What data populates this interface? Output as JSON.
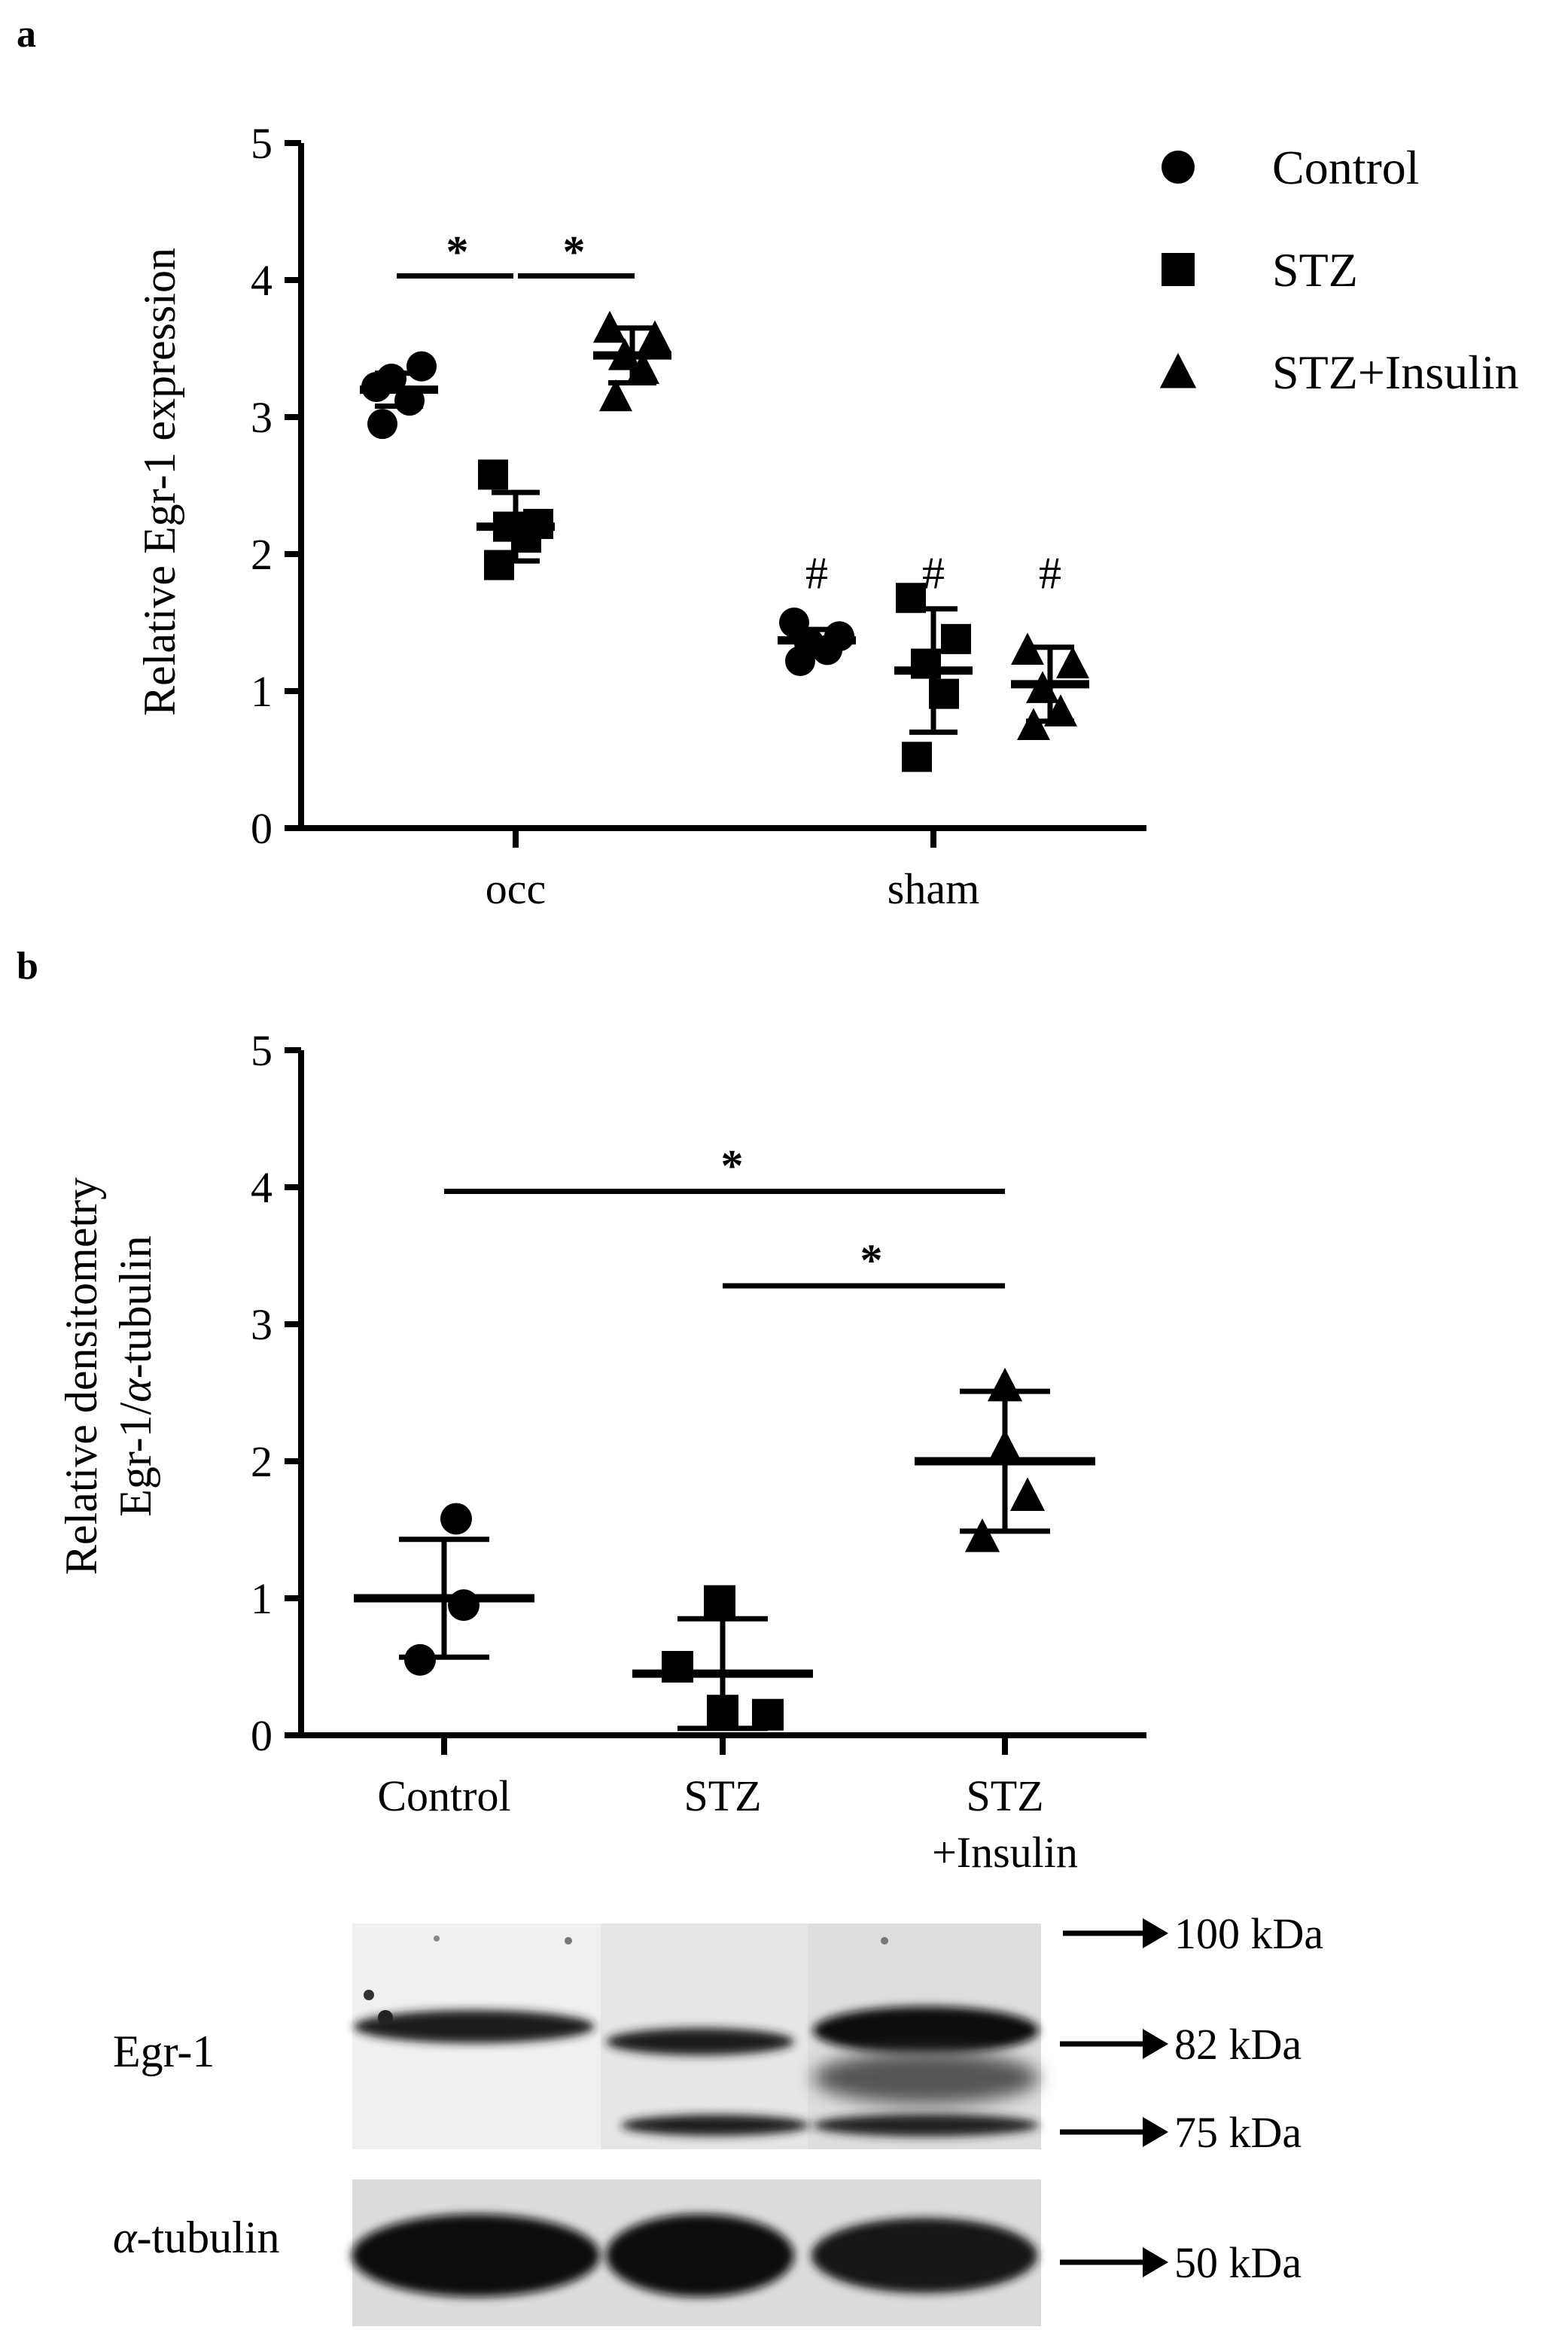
{
  "colors": {
    "ink": "#000000",
    "blot_bg": "#e9e9e9",
    "band": "#0d0d0d"
  },
  "chart_data": [
    {
      "panel": "a",
      "type": "scatter",
      "title": "",
      "ylabel": "Relative Egr-1 expression",
      "xlabel": "",
      "ylim": [
        0,
        5
      ],
      "yticks": [
        "0",
        "1",
        "2",
        "3",
        "4",
        "5"
      ],
      "categories": [
        "occ",
        "sham"
      ],
      "legend": {
        "placement": "top-right",
        "entries": [
          {
            "name": "Control",
            "marker": "circle"
          },
          {
            "name": "STZ",
            "marker": "square"
          },
          {
            "name": "STZ+Insulin",
            "marker": "triangle"
          }
        ]
      },
      "series": [
        {
          "name": "Control",
          "marker": "circle",
          "groups": [
            {
              "category": "occ",
              "mean": 3.2,
              "sd": 0.12,
              "points": [
                3.22,
                3.37,
                3.28,
                3.12,
                2.95
              ]
            },
            {
              "category": "sham",
              "mean": 1.37,
              "sd": 0.08,
              "points": [
                1.5,
                1.4,
                1.35,
                1.3,
                1.22
              ]
            }
          ]
        },
        {
          "name": "STZ",
          "marker": "square",
          "groups": [
            {
              "category": "occ",
              "mean": 2.2,
              "sd": 0.25,
              "points": [
                2.58,
                2.22,
                2.2,
                2.12,
                1.92
              ]
            },
            {
              "category": "sham",
              "mean": 1.15,
              "sd": 0.45,
              "points": [
                1.68,
                1.38,
                1.2,
                0.98,
                0.52
              ]
            }
          ]
        },
        {
          "name": "STZ+Insulin",
          "marker": "triangle",
          "groups": [
            {
              "category": "occ",
              "mean": 3.45,
              "sd": 0.2,
              "points": [
                3.65,
                3.58,
                3.45,
                3.35,
                3.15
              ]
            },
            {
              "category": "sham",
              "mean": 1.05,
              "sd": 0.27,
              "points": [
                1.3,
                1.2,
                1.02,
                0.85,
                0.75
              ]
            }
          ]
        }
      ],
      "annotations": {
        "significance": [
          {
            "from": "Control",
            "to": "STZ",
            "category": "occ",
            "label": "*"
          },
          {
            "from": "STZ",
            "to": "STZ+Insulin",
            "category": "occ",
            "label": "*"
          }
        ],
        "hash": [
          {
            "series": "Control",
            "category": "sham",
            "label": "#"
          },
          {
            "series": "STZ",
            "category": "sham",
            "label": "#"
          },
          {
            "series": "STZ+Insulin",
            "category": "sham",
            "label": "#"
          }
        ]
      }
    },
    {
      "panel": "b",
      "type": "scatter",
      "title": "",
      "ylabel_line1": "Relative densitometry",
      "ylabel_line2_prefix": "Egr-1/",
      "ylabel_line2_greek": "α",
      "ylabel_line2_suffix": "-tubulin",
      "xlabel": "",
      "ylim": [
        0,
        5
      ],
      "yticks": [
        "0",
        "1",
        "2",
        "3",
        "4",
        "5"
      ],
      "categories": [
        "Control",
        "STZ",
        "STZ+Insulin"
      ],
      "category_labels": [
        [
          "Control"
        ],
        [
          "STZ"
        ],
        [
          "STZ",
          "+Insulin"
        ]
      ],
      "series": [
        {
          "name": "Control",
          "marker": "circle",
          "mean": 1.0,
          "sd": 0.43,
          "points": [
            1.58,
            0.95,
            0.55
          ]
        },
        {
          "name": "STZ",
          "marker": "square",
          "mean": 0.45,
          "sd": 0.4,
          "points": [
            0.98,
            0.5,
            0.18,
            0.15
          ]
        },
        {
          "name": "STZ+Insulin",
          "marker": "triangle",
          "mean": 2.0,
          "sd": 0.51,
          "points": [
            2.55,
            2.1,
            1.75,
            1.45
          ]
        }
      ],
      "annotations": {
        "significance": [
          {
            "from": "Control",
            "to": "STZ+Insulin",
            "label": "*",
            "y": 3.97
          },
          {
            "from": "STZ",
            "to": "STZ+Insulin",
            "label": "*",
            "y": 3.28
          }
        ]
      }
    }
  ],
  "western_blot": {
    "rows": [
      {
        "label": "Egr-1",
        "greek_prefix": ""
      },
      {
        "label": "-tubulin",
        "greek_prefix": "α"
      }
    ],
    "markers": [
      "100 kDa",
      "82 kDa",
      "75 kDa",
      "50 kDa"
    ],
    "lanes": [
      "Control",
      "STZ",
      "STZ+Insulin"
    ]
  },
  "panels": {
    "a": "a",
    "b": "b"
  }
}
